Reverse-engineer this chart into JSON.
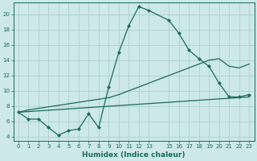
{
  "xlabel": "Humidex (Indice chaleur)",
  "bg_color": "#cce8e8",
  "grid_color": "#b0d0d0",
  "line_color": "#1a6b60",
  "xlim": [
    -0.5,
    23.5
  ],
  "ylim": [
    3.5,
    21.5
  ],
  "yticks": [
    4,
    6,
    8,
    10,
    12,
    14,
    16,
    18,
    20
  ],
  "xtick_labels": [
    "0",
    "1",
    "2",
    "3",
    "4",
    "5",
    "6",
    "7",
    "8",
    "9",
    "10",
    "11",
    "12",
    "13",
    "15",
    "16",
    "17",
    "18",
    "19",
    "20",
    "21",
    "22",
    "23"
  ],
  "xtick_positions": [
    0,
    1,
    2,
    3,
    4,
    5,
    6,
    7,
    8,
    9,
    10,
    11,
    12,
    13,
    15,
    16,
    17,
    18,
    19,
    20,
    21,
    22,
    23
  ],
  "line1_x": [
    0,
    1,
    2,
    3,
    4,
    5,
    6,
    7,
    8,
    9,
    10,
    11,
    12,
    13,
    15,
    16,
    17,
    18,
    19,
    20,
    21,
    22,
    23
  ],
  "line1_y": [
    7.2,
    6.3,
    6.3,
    5.2,
    4.2,
    4.8,
    5.0,
    7.0,
    5.2,
    10.5,
    15.0,
    18.5,
    21.0,
    20.5,
    19.2,
    17.5,
    15.3,
    14.2,
    13.2,
    11.0,
    9.2,
    9.2,
    9.5
  ],
  "line2_x": [
    0,
    1,
    2,
    3,
    4,
    5,
    6,
    7,
    8,
    9,
    10,
    11,
    12,
    13,
    15,
    16,
    17,
    18,
    19,
    20,
    21,
    22,
    23
  ],
  "line2_y": [
    7.2,
    7.5,
    7.7,
    7.9,
    8.1,
    8.3,
    8.5,
    8.7,
    8.9,
    9.1,
    9.5,
    10.0,
    10.5,
    11.0,
    12.0,
    12.5,
    13.0,
    13.5,
    14.0,
    14.2,
    13.2,
    13.0,
    13.5
  ],
  "line3_x": [
    0,
    23
  ],
  "line3_y": [
    7.2,
    9.2
  ],
  "marker_size": 2.5
}
